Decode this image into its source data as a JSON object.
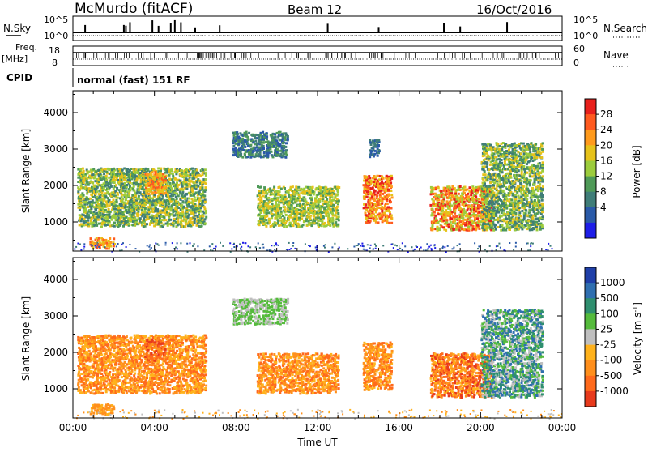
{
  "header": {
    "station": "McMurdo (fitACF)",
    "beam": "Beam 12",
    "date": "16/Oct/2016"
  },
  "top_panels": {
    "nsky_label": "N.Sky",
    "nsearch_label": "N.Search",
    "nsky_ticks": [
      "10^5",
      "10^0"
    ],
    "nsearch_ticks": [
      "10^5",
      "10^0"
    ],
    "freq_label_1": "Freq.",
    "freq_label_2": "[MHz]",
    "freq_ticks": [
      "18",
      "8"
    ],
    "nave_label": "Nave",
    "nave_ticks": [
      "60",
      "0"
    ],
    "cpid_label": "CPID",
    "cpid_text": "normal (fast) 151 RF"
  },
  "chart_data": [
    {
      "type": "heatmap",
      "panel": "power",
      "ylabel": "Slant Range [km]",
      "xlabel": "",
      "ylim": [
        200,
        4600
      ],
      "y_ticks": [
        "1000",
        "2000",
        "3000",
        "4000"
      ],
      "x_ticks": [
        "00:00",
        "04:00",
        "08:00",
        "12:00",
        "16:00",
        "20:00",
        "00:00"
      ],
      "xlim_hours": [
        0,
        24
      ],
      "colorbar": {
        "label": "Power [dB]",
        "ticks": [
          "28",
          "24",
          "20",
          "16",
          "12",
          "8",
          "4"
        ],
        "colors": [
          "#e8201c",
          "#ff5a1f",
          "#ff9a1c",
          "#e6c21a",
          "#9ccc3c",
          "#4f9a58",
          "#3f7d78",
          "#2a5aa8",
          "#1e1ee8"
        ]
      },
      "echo_regions": [
        {
          "t_start": 0.2,
          "t_end": 6.5,
          "r_min": 900,
          "r_max": 2500,
          "level": "12-20 dB"
        },
        {
          "t_start": 0.8,
          "t_end": 2.0,
          "r_min": 300,
          "r_max": 600,
          "level": "16-24 dB"
        },
        {
          "t_start": 3.5,
          "t_end": 4.5,
          "r_min": 1800,
          "r_max": 2400,
          "level": "16-24 dB"
        },
        {
          "t_start": 7.8,
          "t_end": 10.5,
          "r_min": 2800,
          "r_max": 3500,
          "level": "4-12 dB"
        },
        {
          "t_start": 9.0,
          "t_end": 13.0,
          "r_min": 900,
          "r_max": 2000,
          "level": "12-20 dB"
        },
        {
          "t_start": 14.2,
          "t_end": 15.6,
          "r_min": 1000,
          "r_max": 2300,
          "level": "20-28 dB"
        },
        {
          "t_start": 14.5,
          "t_end": 15.0,
          "r_min": 2800,
          "r_max": 3300,
          "level": "4-12 dB"
        },
        {
          "t_start": 17.5,
          "t_end": 20.5,
          "r_min": 800,
          "r_max": 2000,
          "level": "16-28 dB"
        },
        {
          "t_start": 20.0,
          "t_end": 23.0,
          "r_min": 800,
          "r_max": 3200,
          "level": "8-20 dB"
        }
      ]
    },
    {
      "type": "heatmap",
      "panel": "velocity",
      "ylabel": "Slant Range [km]",
      "xlabel": "Time UT",
      "ylim": [
        200,
        4600
      ],
      "y_ticks": [
        "1000",
        "2000",
        "3000",
        "4000"
      ],
      "x_ticks": [
        "00:00",
        "04:00",
        "08:00",
        "12:00",
        "16:00",
        "20:00",
        "00:00"
      ],
      "xlim_hours": [
        0,
        24
      ],
      "colorbar": {
        "label": "Velocity [m s",
        "label_sup": "-1",
        "label_end": "]",
        "ticks": [
          "1000",
          "500",
          "100",
          "25",
          "-25",
          "-100",
          "-500",
          "-1000"
        ],
        "colors": [
          "#1f3fa8",
          "#2f6fb0",
          "#2f8f6f",
          "#55bb3c",
          "#bfbfbf",
          "#ffb21c",
          "#ff8f1c",
          "#ff6a1c",
          "#e83a1c"
        ]
      },
      "echo_regions": [
        {
          "t_start": 0.2,
          "t_end": 6.5,
          "r_min": 900,
          "r_max": 2500,
          "level": "-100 to -500"
        },
        {
          "t_start": 0.8,
          "t_end": 2.0,
          "r_min": 300,
          "r_max": 600,
          "level": "-100 to -500"
        },
        {
          "t_start": 3.5,
          "t_end": 4.5,
          "r_min": 1800,
          "r_max": 2400,
          "level": "-500 to -1000"
        },
        {
          "t_start": 7.8,
          "t_end": 10.5,
          "r_min": 2800,
          "r_max": 3500,
          "level": "-25 to 25"
        },
        {
          "t_start": 9.0,
          "t_end": 13.0,
          "r_min": 900,
          "r_max": 2000,
          "level": "-100 to -500"
        },
        {
          "t_start": 14.2,
          "t_end": 15.6,
          "r_min": 1000,
          "r_max": 2300,
          "level": "-100 to -500"
        },
        {
          "t_start": 17.5,
          "t_end": 20.5,
          "r_min": 800,
          "r_max": 2000,
          "level": "-100 to -1000"
        },
        {
          "t_start": 20.0,
          "t_end": 23.0,
          "r_min": 800,
          "r_max": 3200,
          "level": "25 to 500"
        }
      ]
    }
  ]
}
